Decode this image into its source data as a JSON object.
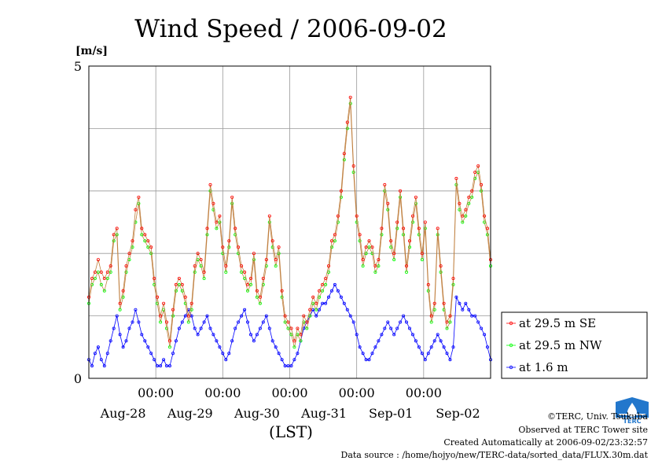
{
  "chart_data": {
    "type": "line",
    "title": "Wind Speed / 2006-09-02",
    "ylabel": "[m/s]",
    "xlabel": "(LST)",
    "ylim": [
      0,
      5
    ],
    "yticks": [
      "0",
      "5"
    ],
    "xlim_hours": [
      -12,
      132
    ],
    "time_ticks": [
      {
        "hour": 12,
        "label": "00:00",
        "day": "Aug-28"
      },
      {
        "hour": 36,
        "label": "00:00",
        "day": "Aug-29"
      },
      {
        "hour": 60,
        "label": "00:00",
        "day": "Aug-30"
      },
      {
        "hour": 84,
        "label": "00:00",
        "day": "Aug-31"
      },
      {
        "hour": 108,
        "label": "00:00",
        "day": "Sep-01"
      },
      {
        "hour": 132,
        "label": "",
        "day": "Sep-02"
      }
    ],
    "grid": true,
    "legend_position": "right",
    "series": [
      {
        "name": "at 29.5 m SE",
        "color": "#ff0000",
        "id": "se",
        "values": [
          1.3,
          1.6,
          1.7,
          1.9,
          1.7,
          1.6,
          1.7,
          1.8,
          2.3,
          2.4,
          1.2,
          1.4,
          1.8,
          2.0,
          2.2,
          2.7,
          2.9,
          2.4,
          2.3,
          2.2,
          2.1,
          1.6,
          1.3,
          1.0,
          1.2,
          0.9,
          0.6,
          1.1,
          1.5,
          1.6,
          1.5,
          1.3,
          1.0,
          1.2,
          1.8,
          2.0,
          1.9,
          1.7,
          2.4,
          3.1,
          2.8,
          2.5,
          2.6,
          2.1,
          1.8,
          2.2,
          2.9,
          2.4,
          2.1,
          1.8,
          1.7,
          1.5,
          1.6,
          2.0,
          1.4,
          1.3,
          1.6,
          1.9,
          2.6,
          2.2,
          1.9,
          2.1,
          1.4,
          1.0,
          0.9,
          0.8,
          0.6,
          0.8,
          0.7,
          1.0,
          0.9,
          1.1,
          1.3,
          1.2,
          1.4,
          1.5,
          1.6,
          1.8,
          2.2,
          2.3,
          2.6,
          3.0,
          3.6,
          4.1,
          4.5,
          3.4,
          2.6,
          2.3,
          1.9,
          2.1,
          2.2,
          2.1,
          1.8,
          1.9,
          2.4,
          3.1,
          2.8,
          2.2,
          2.0,
          2.5,
          3.0,
          2.4,
          1.8,
          2.2,
          2.6,
          2.9,
          2.4,
          2.0,
          2.5,
          1.5,
          1.0,
          1.2,
          2.4,
          1.8,
          1.2,
          0.9,
          1.0,
          1.6,
          3.2,
          2.8,
          2.6,
          2.7,
          2.9,
          3.0,
          3.3,
          3.4,
          3.1,
          2.6,
          2.4,
          1.9
        ]
      },
      {
        "name": "at 29.5 m NW",
        "color": "#00ff00",
        "id": "nw",
        "values": [
          1.2,
          1.5,
          1.6,
          1.7,
          1.5,
          1.4,
          1.6,
          1.7,
          2.2,
          2.3,
          1.1,
          1.3,
          1.7,
          1.9,
          2.1,
          2.5,
          2.8,
          2.3,
          2.2,
          2.1,
          2.0,
          1.5,
          1.2,
          0.9,
          1.1,
          0.8,
          0.5,
          1.0,
          1.4,
          1.5,
          1.4,
          1.2,
          0.9,
          1.1,
          1.7,
          1.9,
          1.8,
          1.6,
          2.3,
          3.0,
          2.7,
          2.4,
          2.5,
          2.0,
          1.7,
          2.1,
          2.8,
          2.3,
          2.0,
          1.7,
          1.6,
          1.4,
          1.5,
          1.9,
          1.3,
          1.2,
          1.5,
          1.8,
          2.5,
          2.1,
          1.8,
          2.0,
          1.3,
          0.9,
          0.8,
          0.7,
          0.5,
          0.7,
          0.6,
          0.9,
          0.8,
          1.0,
          1.2,
          1.1,
          1.3,
          1.4,
          1.5,
          1.7,
          2.1,
          2.2,
          2.5,
          2.9,
          3.5,
          4.0,
          4.4,
          3.3,
          2.5,
          2.2,
          1.8,
          2.0,
          2.1,
          2.0,
          1.7,
          1.8,
          2.3,
          3.0,
          2.7,
          2.1,
          1.9,
          2.4,
          2.9,
          2.3,
          1.7,
          2.1,
          2.5,
          2.8,
          2.3,
          1.9,
          2.4,
          1.4,
          0.9,
          1.1,
          2.3,
          1.7,
          1.1,
          0.8,
          0.9,
          1.5,
          3.1,
          2.7,
          2.5,
          2.6,
          2.8,
          2.9,
          3.2,
          3.3,
          3.0,
          2.5,
          2.3,
          1.8
        ]
      },
      {
        "name": "at 1.6 m",
        "color": "#0000ff",
        "id": "sfc",
        "values": [
          0.3,
          0.2,
          0.4,
          0.5,
          0.3,
          0.2,
          0.4,
          0.6,
          0.8,
          1.0,
          0.7,
          0.5,
          0.6,
          0.8,
          0.9,
          1.1,
          0.9,
          0.7,
          0.6,
          0.5,
          0.4,
          0.3,
          0.2,
          0.2,
          0.3,
          0.2,
          0.2,
          0.4,
          0.6,
          0.8,
          0.9,
          1.0,
          1.1,
          1.0,
          0.8,
          0.7,
          0.8,
          0.9,
          1.0,
          0.8,
          0.7,
          0.6,
          0.5,
          0.4,
          0.3,
          0.4,
          0.6,
          0.8,
          0.9,
          1.0,
          1.1,
          0.9,
          0.7,
          0.6,
          0.7,
          0.8,
          0.9,
          1.0,
          0.8,
          0.6,
          0.5,
          0.4,
          0.3,
          0.2,
          0.2,
          0.2,
          0.3,
          0.4,
          0.6,
          0.8,
          0.9,
          1.0,
          1.1,
          1.0,
          1.1,
          1.2,
          1.2,
          1.3,
          1.4,
          1.5,
          1.4,
          1.3,
          1.2,
          1.1,
          1.0,
          0.9,
          0.7,
          0.5,
          0.4,
          0.3,
          0.3,
          0.4,
          0.5,
          0.6,
          0.7,
          0.8,
          0.9,
          0.8,
          0.7,
          0.8,
          0.9,
          1.0,
          0.9,
          0.8,
          0.7,
          0.6,
          0.5,
          0.4,
          0.3,
          0.4,
          0.5,
          0.6,
          0.7,
          0.6,
          0.5,
          0.4,
          0.3,
          0.5,
          1.3,
          1.2,
          1.1,
          1.2,
          1.1,
          1.0,
          1.0,
          0.9,
          0.8,
          0.7,
          0.5,
          0.3
        ]
      }
    ]
  },
  "credits": {
    "line1": "©TERC, Univ. Tsukuba",
    "line2": "Observed at TERC Tower site",
    "line3": "Created Automatically at 2006-09-02/23:32:57",
    "line4": "Data source : /home/hojyo/new/TERC-data/sorted_data/FLUX.30m.dat"
  },
  "logo": {
    "icon": "terc-logo-icon",
    "color": "#2277cc",
    "text": "TERC"
  }
}
